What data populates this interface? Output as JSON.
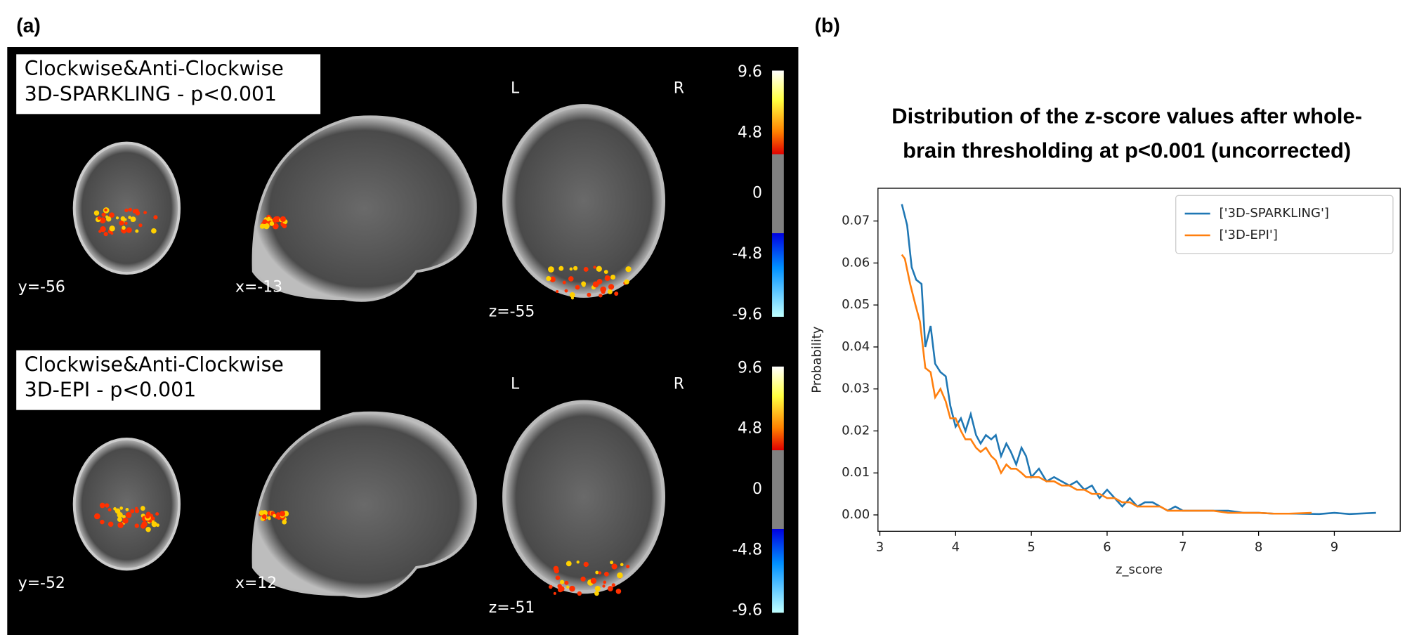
{
  "panel_a": {
    "label": "(a)",
    "rows": [
      {
        "box": [
          "Clockwise&Anti-Clockwise",
          "3D-SPARKLING - p<0.001"
        ],
        "coords": [
          "y=-56",
          "x=-13",
          "z=-55"
        ]
      },
      {
        "box": [
          "Clockwise&Anti-Clockwise",
          "3D-EPI - p<0.001"
        ],
        "coords": [
          "y=-52",
          "x=12",
          "z=-51"
        ]
      }
    ],
    "orientation": [
      "L",
      "R"
    ],
    "colorbar_ticks": [
      "9.6",
      "4.8",
      "0",
      "-4.8",
      "-9.6"
    ]
  },
  "chart_data": {
    "type": "line",
    "label": "(b)",
    "title": [
      "Distribution of the z-score values after whole-",
      "brain thresholding at p<0.001 (uncorrected)"
    ],
    "x_label": "z_score",
    "y_label": "Probability",
    "xlim": [
      2.975,
      9.87
    ],
    "ylim": [
      -0.0039,
      0.0778
    ],
    "xticks": [
      3,
      4,
      5,
      6,
      7,
      8,
      9
    ],
    "yticks": [
      {
        "value": 0,
        "label": "0.00"
      },
      {
        "value": 0.01,
        "label": "0.01"
      },
      {
        "value": 0.02,
        "label": "0.02"
      },
      {
        "value": 0.03,
        "label": "0.03"
      },
      {
        "value": 0.04,
        "label": "0.04"
      },
      {
        "value": 0.05,
        "label": "0.05"
      },
      {
        "value": 0.06,
        "label": "0.06"
      },
      {
        "value": 0.07,
        "label": "0.07"
      }
    ],
    "legend": "upper right",
    "series": [
      {
        "name": "['3D-SPARKLING']",
        "color": "#1f77b4",
        "x": [
          3.29,
          3.36,
          3.42,
          3.48,
          3.55,
          3.6,
          3.67,
          3.73,
          3.8,
          3.87,
          3.93,
          4.0,
          4.07,
          4.13,
          4.2,
          4.27,
          4.33,
          4.4,
          4.47,
          4.53,
          4.6,
          4.67,
          4.73,
          4.8,
          4.87,
          4.93,
          5.0,
          5.1,
          5.2,
          5.3,
          5.4,
          5.5,
          5.6,
          5.7,
          5.8,
          5.9,
          6.0,
          6.1,
          6.2,
          6.3,
          6.4,
          6.5,
          6.6,
          6.7,
          6.8,
          6.9,
          7.0,
          7.2,
          7.4,
          7.6,
          7.8,
          8.0,
          8.2,
          8.5,
          8.8,
          9.0,
          9.2,
          9.55
        ],
        "values": [
          0.074,
          0.069,
          0.059,
          0.056,
          0.055,
          0.04,
          0.045,
          0.036,
          0.034,
          0.033,
          0.026,
          0.021,
          0.023,
          0.02,
          0.024,
          0.019,
          0.017,
          0.019,
          0.018,
          0.019,
          0.014,
          0.017,
          0.015,
          0.012,
          0.016,
          0.014,
          0.009,
          0.011,
          0.008,
          0.009,
          0.008,
          0.007,
          0.008,
          0.006,
          0.007,
          0.004,
          0.006,
          0.004,
          0.002,
          0.004,
          0.002,
          0.003,
          0.003,
          0.002,
          0.001,
          0.002,
          0.001,
          0.001,
          0.001,
          0.001,
          0.0005,
          0.0005,
          0.0003,
          0.0003,
          0.0002,
          0.0005,
          0.0002,
          0.0005
        ]
      },
      {
        "name": "['3D-EPI']",
        "color": "#ff7f0e",
        "x": [
          3.29,
          3.33,
          3.4,
          3.47,
          3.53,
          3.6,
          3.67,
          3.73,
          3.8,
          3.87,
          3.93,
          4.0,
          4.07,
          4.13,
          4.2,
          4.27,
          4.33,
          4.4,
          4.47,
          4.53,
          4.6,
          4.67,
          4.73,
          4.8,
          4.87,
          4.93,
          5.0,
          5.1,
          5.2,
          5.3,
          5.4,
          5.5,
          5.6,
          5.7,
          5.8,
          5.9,
          6.0,
          6.1,
          6.2,
          6.3,
          6.4,
          6.5,
          6.6,
          6.7,
          6.8,
          6.9,
          7.0,
          7.2,
          7.4,
          7.6,
          7.8,
          8.0,
          8.2,
          8.4,
          8.7
        ],
        "values": [
          0.062,
          0.061,
          0.055,
          0.05,
          0.046,
          0.035,
          0.034,
          0.028,
          0.03,
          0.027,
          0.023,
          0.023,
          0.02,
          0.018,
          0.018,
          0.016,
          0.015,
          0.016,
          0.014,
          0.013,
          0.01,
          0.012,
          0.011,
          0.011,
          0.01,
          0.009,
          0.009,
          0.009,
          0.008,
          0.008,
          0.007,
          0.007,
          0.006,
          0.006,
          0.005,
          0.005,
          0.004,
          0.004,
          0.003,
          0.003,
          0.002,
          0.002,
          0.002,
          0.002,
          0.001,
          0.001,
          0.001,
          0.001,
          0.001,
          0.0005,
          0.0005,
          0.0005,
          0.0003,
          0.0003,
          0.0005
        ]
      }
    ]
  }
}
